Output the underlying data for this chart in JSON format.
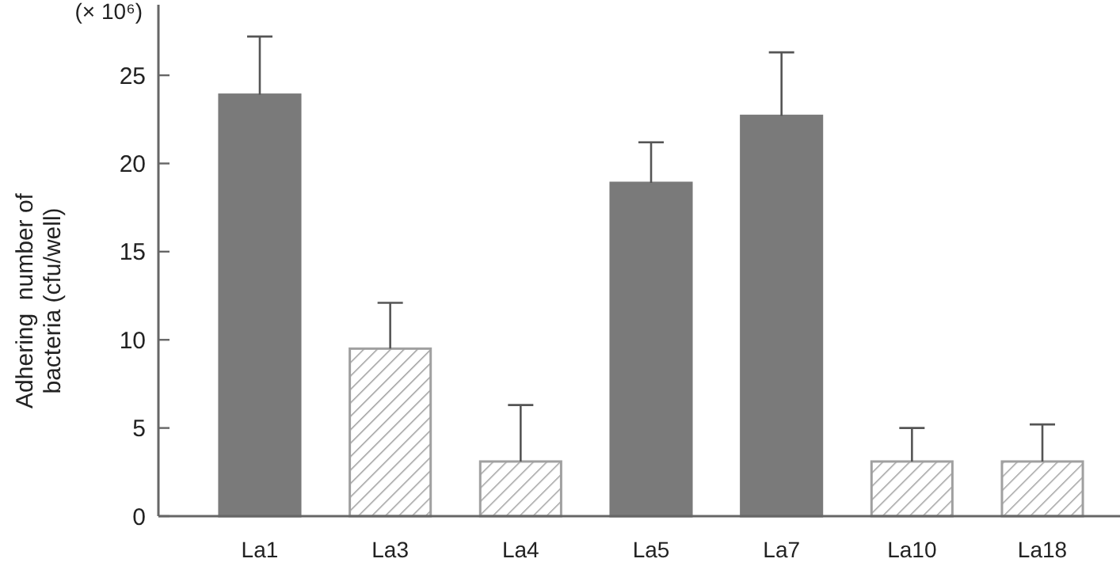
{
  "chart_data": {
    "type": "bar",
    "ylabel": "Adhering  number of bacteria (cfu/well)",
    "annotations": [
      "(× 10⁶)"
    ],
    "categories": [
      "La1",
      "La3",
      "La4",
      "La5",
      "La7",
      "La10",
      "La18"
    ],
    "values": [
      23.9,
      9.5,
      3.1,
      18.9,
      22.7,
      3.1,
      3.1
    ],
    "errors": [
      [
        23.9,
        27.2
      ],
      [
        9.5,
        12.1
      ],
      [
        3.1,
        6.3
      ],
      [
        18.9,
        21.2
      ],
      [
        22.7,
        26.3
      ],
      [
        3.1,
        5.0
      ],
      [
        3.1,
        5.2
      ]
    ],
    "colors": [
      "#7a7a7a",
      "#a0a0a0",
      "#a0a0a0",
      "#7a7a7a",
      "#7a7a7a",
      "#a0a0a0",
      "#a0a0a0"
    ],
    "ylim": [
      0,
      29
    ],
    "yticks": [
      0,
      5,
      10,
      15,
      20,
      25
    ],
    "grid": false
  }
}
